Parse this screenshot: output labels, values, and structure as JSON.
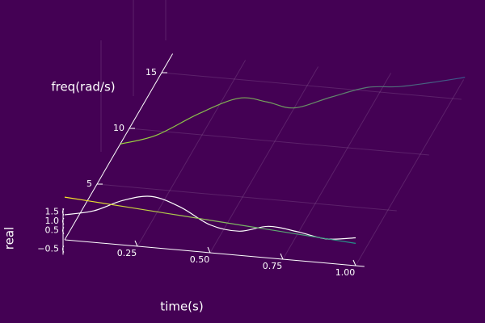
{
  "chart_data": {
    "type": "line3d",
    "xlabel": "time(s)",
    "ylabel": "freq(rad/s)",
    "zlabel": "real",
    "background": "#440154",
    "grid": true,
    "x": [
      0,
      0.1,
      0.2,
      0.3,
      0.4,
      0.5,
      0.6,
      0.7,
      0.8,
      0.9,
      1.0
    ],
    "xlim": [
      0,
      1.03
    ],
    "xticks": [
      {
        "value": 0.25,
        "label": "0.25"
      },
      {
        "value": 0.5,
        "label": "0.50"
      },
      {
        "value": 0.75,
        "label": "0.75"
      },
      {
        "value": 1,
        "label": "1.00"
      }
    ],
    "ylim": [
      0,
      16.7
    ],
    "yticks": [
      5,
      10,
      15
    ],
    "zlim": [
      -0.8,
      1.7
    ],
    "zticks": [
      {
        "value": -0.5,
        "label": "−0.5"
      },
      0.5,
      {
        "value": 1,
        "label": "1.0"
      },
      1.5
    ],
    "series": [
      {
        "axis": "freq",
        "colors": [
          "#9fda3a",
          "#3b528b"
        ],
        "values": [
          8.6,
          9.6,
          11.8,
          13.4,
          13.3,
          13.0,
          14.2,
          15.3,
          15.6,
          16.2,
          16.9
        ]
      },
      {
        "axis": "real",
        "colors": [
          "#ffffff",
          "#ffffff"
        ],
        "values": [
          1.35,
          1.7,
          2.4,
          2.75,
          2.3,
          1.5,
          1.3,
          1.7,
          1.55,
          1.3,
          1.5
        ]
      },
      {
        "axis": "real",
        "colors": [
          "#fde725",
          "#21918c"
        ],
        "values": [
          2.3,
          2.19,
          2.08,
          1.97,
          1.86,
          1.75,
          1.64,
          1.53,
          1.42,
          1.31,
          1.2
        ]
      }
    ]
  }
}
